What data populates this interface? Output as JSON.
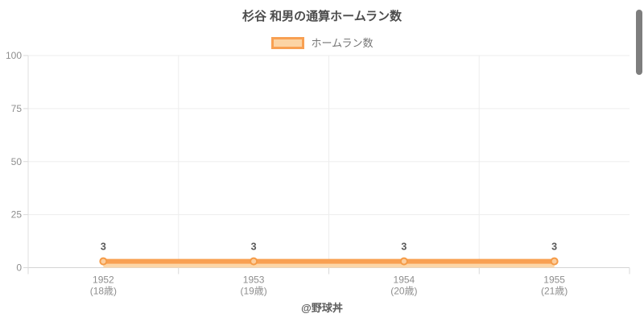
{
  "header": {
    "title": "杉谷 和男の通算ホームラン数"
  },
  "legend": {
    "items": [
      {
        "label": "ホームラン数",
        "swatch_fill": "#fcd4a4",
        "swatch_border": "#f8a052"
      }
    ]
  },
  "footer": {
    "credit": "@野球丼"
  },
  "chart_data": {
    "type": "line",
    "title": "杉谷 和男の通算ホームラン数",
    "categories": [
      "1952",
      "1953",
      "1954",
      "1955"
    ],
    "category_sublabels": [
      "(18歳)",
      "(19歳)",
      "(20歳)",
      "(21歳)"
    ],
    "series": [
      {
        "name": "ホームラン数",
        "values": [
          3,
          3,
          3,
          3
        ]
      }
    ],
    "data_labels_visible": true,
    "xlabel": "",
    "ylabel": "",
    "ylim": [
      0,
      100
    ],
    "yticks": [
      0,
      25,
      50,
      75,
      100
    ],
    "grid": true,
    "legend_position": "top",
    "colors": {
      "line": "#f9a052",
      "area_fill": "#fcd6a8",
      "marker_fill": "#fcce9e",
      "marker_border": "#f59b47",
      "value_label": "#595959",
      "tick_label": "#8e8e8e",
      "grid_line": "#ededed",
      "axis_line": "#dfdfdf",
      "baseline": "#d4d4d4",
      "tick_mark": "#d9d9d9"
    }
  }
}
